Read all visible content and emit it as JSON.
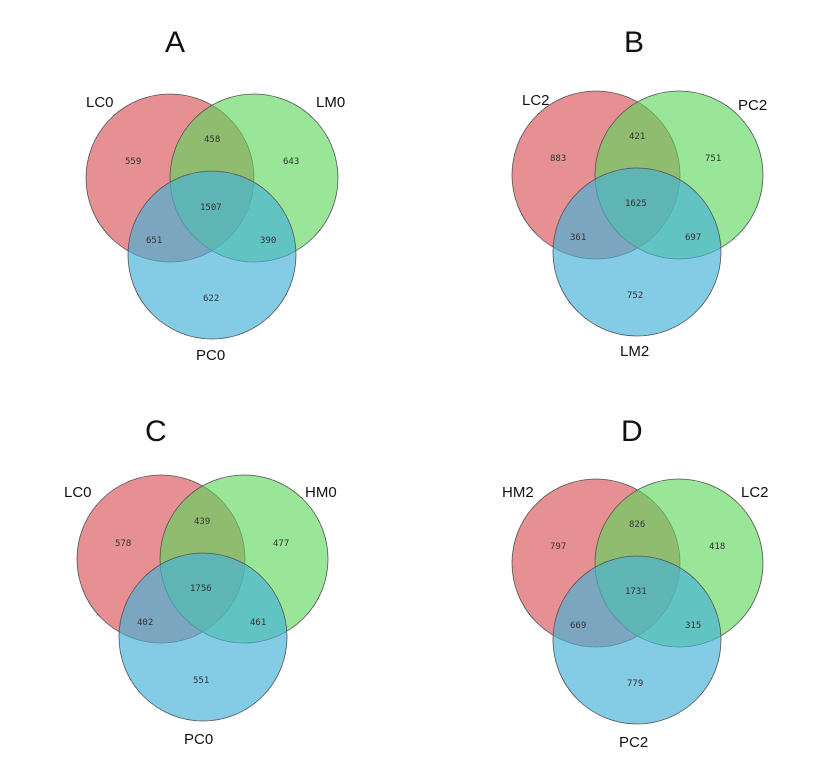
{
  "colors": {
    "set1": "#dc5c60",
    "set2": "#5bd65b",
    "set3": "#45b2d8",
    "stroke": "#555555"
  },
  "panels": [
    {
      "letter": "A",
      "sets": [
        "LC0",
        "LM0",
        "PC0"
      ],
      "counts": {
        "only1": "559",
        "only2": "643",
        "only3": "622",
        "s12": "458",
        "s13": "651",
        "s23": "390",
        "s123": "1507"
      }
    },
    {
      "letter": "B",
      "sets": [
        "LC2",
        "PC2",
        "LM2"
      ],
      "counts": {
        "only1": "883",
        "only2": "751",
        "only3": "752",
        "s12": "421",
        "s13": "361",
        "s23": "697",
        "s123": "1625"
      }
    },
    {
      "letter": "C",
      "sets": [
        "LC0",
        "HM0",
        "PC0"
      ],
      "counts": {
        "only1": "578",
        "only2": "477",
        "only3": "551",
        "s12": "439",
        "s13": "402",
        "s23": "461",
        "s123": "1756"
      }
    },
    {
      "letter": "D",
      "sets": [
        "HM2",
        "LC2",
        "PC2"
      ],
      "counts": {
        "only1": "797",
        "only2": "418",
        "only3": "779",
        "s12": "826",
        "s13": "669",
        "s23": "315",
        "s123": "1731"
      }
    }
  ]
}
